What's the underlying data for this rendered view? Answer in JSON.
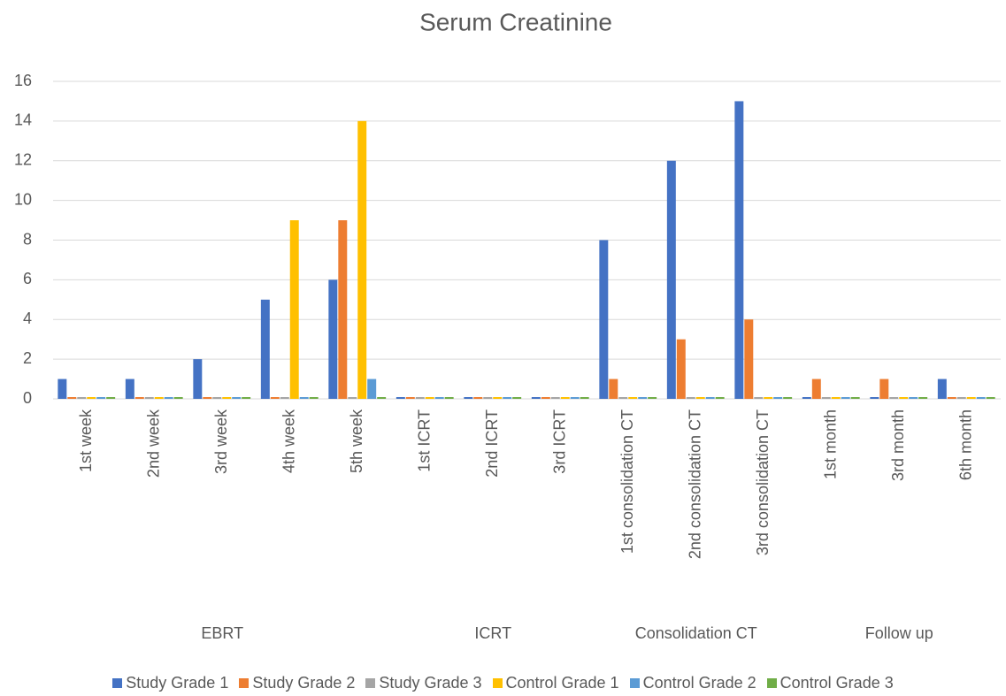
{
  "chart_data": {
    "type": "bar",
    "title": "Serum Creatinine",
    "groups": [
      {
        "label": "EBRT",
        "categories": [
          "1st week",
          "2nd week",
          "3rd week",
          "4th week",
          "5th week"
        ]
      },
      {
        "label": "ICRT",
        "categories": [
          "1st ICRT",
          "2nd ICRT",
          "3rd ICRT"
        ]
      },
      {
        "label": "Consolidation CT",
        "categories": [
          "1st consolidation CT",
          "2nd consolidation CT",
          "3rd consolidation CT"
        ]
      },
      {
        "label": "Follow up",
        "categories": [
          "1st month",
          "3rd  month",
          "6th month"
        ]
      }
    ],
    "series": [
      {
        "name": "Study Grade 1",
        "color": "#4472c4",
        "values": [
          1,
          1,
          2,
          5,
          6,
          0,
          0,
          0,
          8,
          12,
          15,
          0,
          0,
          1
        ]
      },
      {
        "name": "Study Grade 2",
        "color": "#ed7d31",
        "values": [
          0,
          0,
          0,
          0,
          9,
          0,
          0,
          0,
          1,
          3,
          4,
          1,
          1,
          0
        ]
      },
      {
        "name": "Study Grade 3",
        "color": "#a5a5a5",
        "values": [
          0,
          0,
          0,
          0,
          0,
          0,
          0,
          0,
          0,
          0,
          0,
          0,
          0,
          0
        ]
      },
      {
        "name": "Control Grade 1",
        "color": "#ffc000",
        "values": [
          0,
          0,
          0,
          9,
          14,
          0,
          0,
          0,
          0,
          0,
          0,
          0,
          0,
          0
        ]
      },
      {
        "name": "Control Grade 2",
        "color": "#5b9bd5",
        "values": [
          0,
          0,
          0,
          0,
          1,
          0,
          0,
          0,
          0,
          0,
          0,
          0,
          0,
          0
        ]
      },
      {
        "name": "Control Grade 3",
        "color": "#70ad47",
        "values": [
          0,
          0,
          0,
          0,
          0,
          0,
          0,
          0,
          0,
          0,
          0,
          0,
          0,
          0
        ]
      }
    ],
    "ylim": [
      0,
      16
    ],
    "yticks": [
      0,
      2,
      4,
      6,
      8,
      10,
      12,
      14,
      16
    ],
    "grid": true,
    "legend": "bottom"
  }
}
